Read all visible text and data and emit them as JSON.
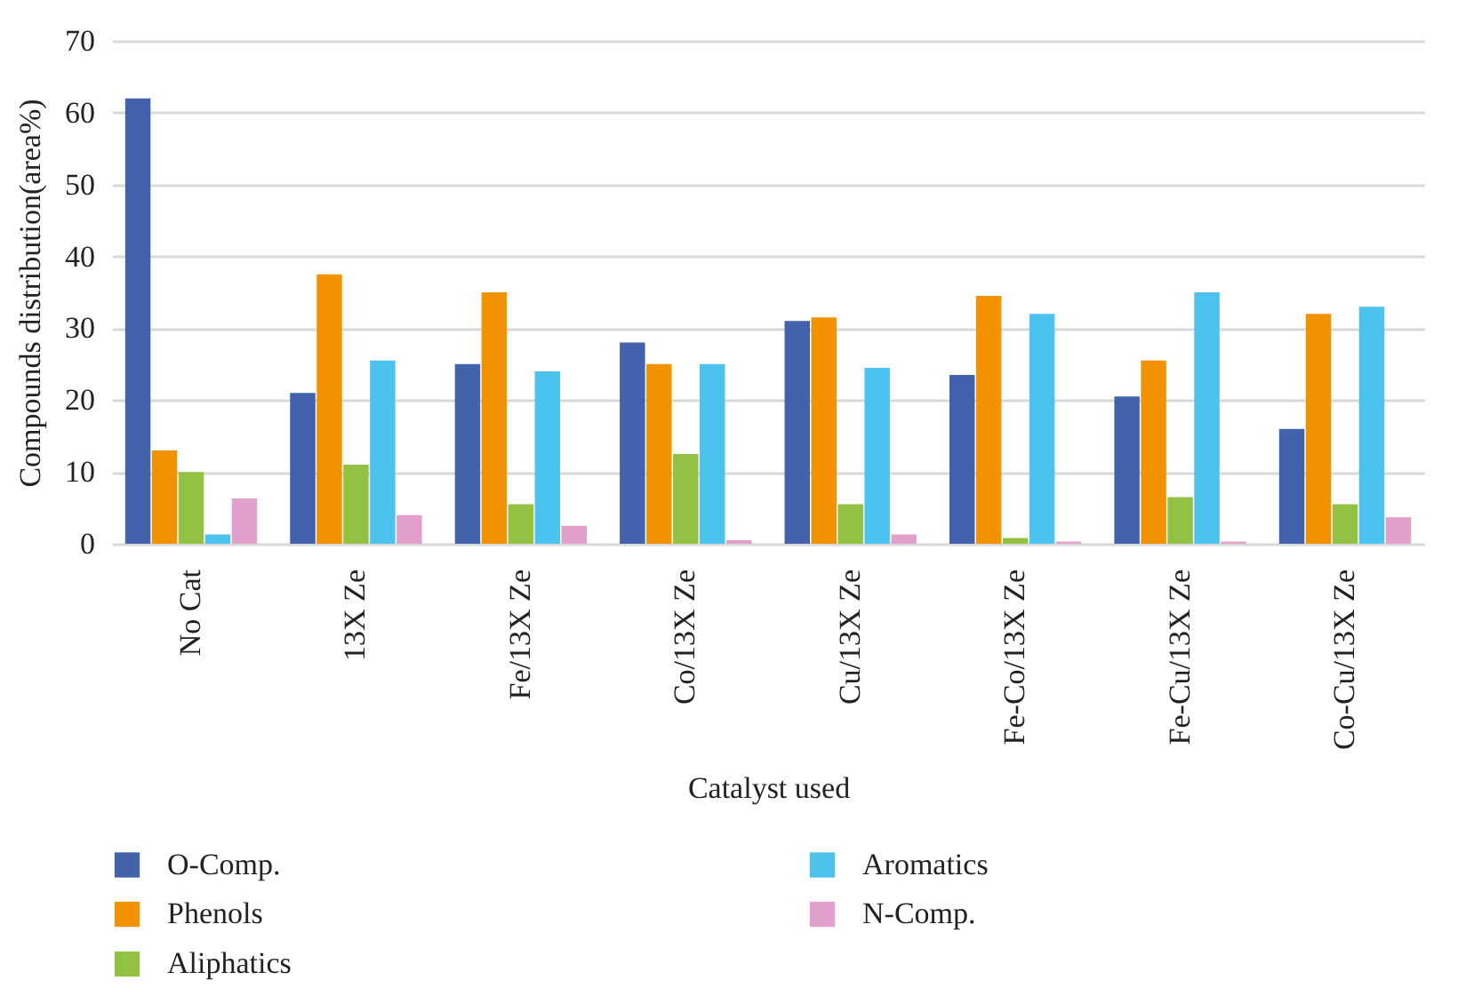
{
  "chart_data": {
    "type": "bar",
    "xlabel": "Catalyst used",
    "ylabel": "Compounds distribution(area%)",
    "categories": [
      "No Cat",
      "13X Ze",
      "Fe/13X Ze",
      "Co/13X Ze",
      "Cu/13X Ze",
      "Fe-Co/13X Ze",
      "Fe-Cu/13X Ze",
      "Co-Cu/13X Ze"
    ],
    "series": [
      {
        "name": "O-Comp.",
        "color": "#4262ac",
        "values": [
          62,
          21,
          25,
          28,
          31,
          23.5,
          20.5,
          16
        ]
      },
      {
        "name": "Phenols",
        "color": "#f39200",
        "values": [
          13,
          37.5,
          35,
          25,
          31.5,
          34.5,
          25.5,
          32
        ]
      },
      {
        "name": "Aliphatics",
        "color": "#93c143",
        "values": [
          10,
          11,
          5.5,
          12.5,
          5.5,
          0.8,
          6.5,
          5.5
        ]
      },
      {
        "name": "Aromatics",
        "color": "#4cc3ef",
        "values": [
          1.3,
          25.5,
          24,
          25,
          24.5,
          32,
          35,
          33
        ]
      },
      {
        "name": "N-Comp.",
        "color": "#e0a0cb",
        "values": [
          6.3,
          4,
          2.5,
          0.5,
          1.3,
          0.3,
          0.3,
          3.7
        ]
      }
    ],
    "ylim": [
      0,
      70
    ],
    "yticks": [
      0,
      10,
      20,
      30,
      40,
      50,
      60,
      70
    ],
    "grid": "y",
    "legend": "bottom"
  }
}
